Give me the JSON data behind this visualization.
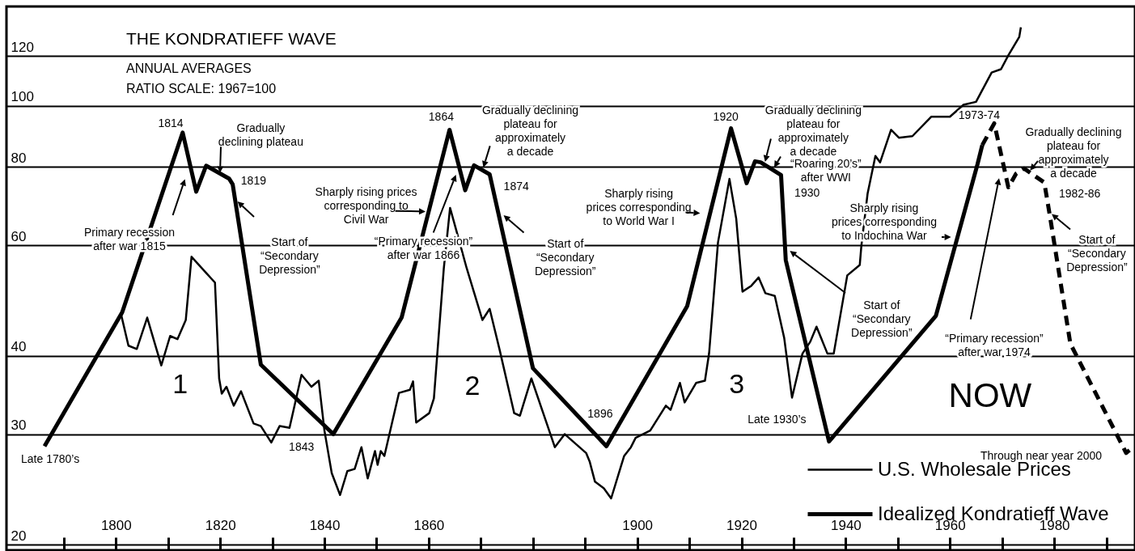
{
  "chart_data": {
    "type": "line",
    "title": "THE KONDRATIEFF WAVE",
    "subtitle": "ANNUAL AVERAGES\nRATIO SCALE: 1967=100",
    "xlim": [
      1779,
      1995.5
    ],
    "ylim": [
      19.6,
      144
    ],
    "log": true,
    "grid": "y",
    "legend": "bottom right",
    "xticks": [
      {
        "value": 1790,
        "label": null
      },
      1800,
      {
        "value": 1810,
        "label": null
      },
      1820,
      {
        "value": 1830,
        "label": null
      },
      1840,
      {
        "value": 1850,
        "label": null
      },
      1860,
      {
        "value": 1870,
        "label": null
      },
      {
        "value": 1880,
        "label": null
      },
      {
        "value": 1890,
        "label": null
      },
      1900,
      {
        "value": 1910,
        "label": null
      },
      1920,
      {
        "value": 1930,
        "label": null
      },
      1940,
      {
        "value": 1950,
        "label": null
      },
      1960,
      {
        "value": 1970,
        "label": null
      },
      1980,
      {
        "value": 1990,
        "label": null
      }
    ],
    "yticks": [
      20,
      30,
      40,
      60,
      80,
      100,
      120
    ],
    "series": [
      {
        "name": "U.S. Wholesale Prices",
        "color": "#000000",
        "x": [
          1801,
          1802.4,
          1804,
          1806,
          1808.7,
          1810.4,
          1811.8,
          1813.4,
          1814.5,
          1819,
          1819.8,
          1820.3,
          1821.2,
          1822.6,
          1824,
          1826.4,
          1827.8,
          1829.8,
          1831.4,
          1833.3,
          1835.6,
          1837.5,
          1838.9,
          1840,
          1841.4,
          1843,
          1844.4,
          1845.8,
          1847.1,
          1848.3,
          1849.7,
          1850.2,
          1850.8,
          1851.5,
          1854.3,
          1856.4,
          1857,
          1857.6,
          1860.1,
          1861,
          1862.9,
          1864.1,
          1865.4,
          1867.3,
          1870.3,
          1871.7,
          1873.6,
          1876.4,
          1877.5,
          1879.7,
          1884.2,
          1886.1,
          1890.2,
          1890.9,
          1891.9,
          1893.6,
          1895,
          1897.5,
          1898.8,
          1899.7,
          1902.5,
          1905.5,
          1906.4,
          1908.2,
          1909.1,
          1911.3,
          1913,
          1913.8,
          1915.5,
          1917.7,
          1919,
          1920.2,
          1921.9,
          1923.3,
          1924.6,
          1926.4,
          1928.2,
          1929.7,
          1931.7,
          1933.2,
          1934.4,
          1936.5,
          1937.7,
          1940.3,
          1942.7,
          1943,
          1944.2,
          1945.7,
          1946.6,
          1948.7,
          1950.2,
          1952.8,
          1956.4,
          1960,
          1962.6,
          1965,
          1968,
          1969.8,
          1971.2,
          1973.3,
          1973.6
        ],
        "values": [
          46.5,
          41.5,
          41.0,
          46,
          38.6,
          43,
          42.5,
          45.6,
          57.5,
          52.3,
          36.8,
          34.8,
          35.7,
          33.3,
          35.1,
          31.2,
          30.9,
          29.1,
          30.9,
          30.7,
          37.3,
          35.7,
          36.5,
          30.4,
          26,
          24,
          26.2,
          26.4,
          28.6,
          25.5,
          28.2,
          26.8,
          28.2,
          27.7,
          34.9,
          35.3,
          36.4,
          31.3,
          32.4,
          34.2,
          55.1,
          68.8,
          62.9,
          55.1,
          45.6,
          47.5,
          40.9,
          32.4,
          32.1,
          36.8,
          28.6,
          30,
          28,
          27.1,
          25.2,
          24.6,
          23.7,
          27.7,
          28.6,
          29.6,
          30.4,
          33.3,
          32.8,
          36.2,
          33.7,
          36.2,
          36.5,
          40.4,
          60.6,
          76.5,
          66.1,
          50.6,
          51.7,
          53.3,
          50.3,
          49.8,
          42.7,
          34.3,
          40.3,
          42.1,
          44.5,
          40.3,
          40.3,
          53.7,
          55.8,
          59.8,
          72.5,
          83.2,
          81.3,
          91.6,
          89,
          89.5,
          96.1,
          96.1,
          100.4,
          101.5,
          113,
          114.4,
          120.4,
          128.8,
          133.4
        ]
      },
      {
        "name": "Idealized Kondratieff Wave",
        "color": "#000000",
        "x": [
          1786.3,
          1801.2,
          1812.8,
          1815.4,
          1817.3,
          1821.7,
          1822.4,
          1827.8,
          1841.7,
          1854.8,
          1864,
          1867,
          1868.7,
          1871.7,
          1880,
          1894.1,
          1909.6,
          1918,
          1921,
          1922.6,
          1923.7,
          1927.6,
          1928.5,
          1936.8,
          1957.3,
          1965.3,
          1966.2
        ],
        "values": [
          28.7,
          46.9,
          90.7,
          73,
          80.3,
          76.6,
          75,
          38.7,
          30,
          46,
          91.6,
          73.4,
          80.4,
          77.8,
          38.2,
          28.7,
          48,
          92.1,
          75.3,
          81.6,
          81.3,
          77.6,
          56.8,
          29.2,
          46.3,
          80.8,
          86.6
        ]
      },
      {
        "color": "#000000",
        "line_style": "dashed",
        "x": [
          1966.2,
          1968.5,
          1971.2,
          1972.7,
          1974.2,
          1978.1,
          1979.2,
          1983.1,
          1993.8,
          1995.4
        ],
        "values": [
          86.6,
          93.8,
          74.2,
          78,
          79.5,
          75.5,
          66.6,
          41.8,
          28,
          28.7
        ]
      }
    ],
    "annotations": [
      "1814",
      "Gradually\ndeclining plateau",
      "1819",
      "Primary recession\nafter war 1815",
      "Start of\n“Secondary\nDepression”",
      "1",
      "1843",
      "Late 1780’s",
      "1864",
      "Sharply rising prices\ncorresponding to\nCivil War",
      "Gradually declining\nplateau for\napproximately\na decade",
      "“Primary recession”\nafter war 1866",
      "1874",
      "Start of\n“Secondary\nDepression”",
      "2",
      "1896",
      "Sharply rising\nprices corresponding\nto World War I",
      "1920",
      "3",
      "Gradually declining\nplateau for\napproximately\na decade",
      "“Roaring 20’s”\nafter WWI",
      "1930",
      "Late 1930’s",
      "Start of\n“Secondary\nDepression”",
      "Sharply rising\nprices corresponding\nto Indochina War",
      "1973-74",
      "Gradually declining\nplateau for\napproximately\na decade",
      "1982-86",
      "Start of\n“Secondary\nDepression”",
      "“Primary recession”\nafter war 1974",
      "NOW",
      "Through near year 2000"
    ]
  }
}
